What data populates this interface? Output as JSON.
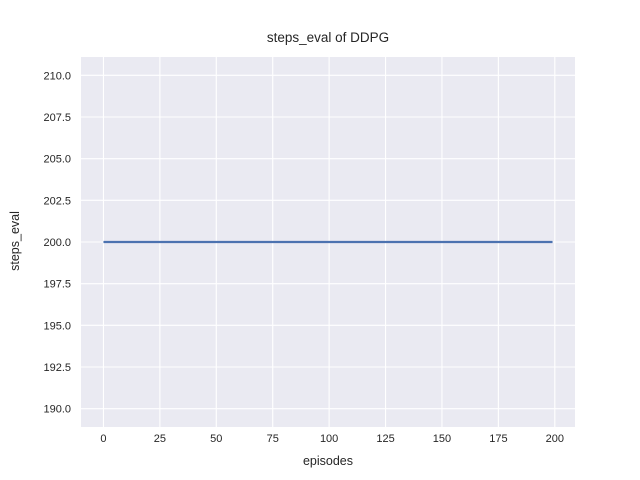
{
  "chart_data": {
    "type": "line",
    "title": "steps_eval of DDPG",
    "xlabel": "episodes",
    "ylabel": "steps_eval",
    "x_tick_values": [
      0,
      25,
      50,
      75,
      100,
      125,
      150,
      175,
      200
    ],
    "x_tick_labels": [
      "0",
      "25",
      "50",
      "75",
      "100",
      "125",
      "150",
      "175",
      "200"
    ],
    "y_tick_values": [
      190.0,
      192.5,
      195.0,
      197.5,
      200.0,
      202.5,
      205.0,
      207.5,
      210.0
    ],
    "y_tick_labels": [
      "190.0",
      "192.5",
      "195.0",
      "197.5",
      "200.0",
      "202.5",
      "205.0",
      "207.5",
      "210.0"
    ],
    "xlim": [
      -9.95,
      208.95
    ],
    "ylim": [
      188.9,
      211.1
    ],
    "grid": true,
    "legend": "none",
    "series": [
      {
        "name": "DDPG",
        "x": [
          0,
          199
        ],
        "y": [
          200,
          200
        ],
        "color": "#4c72b0",
        "description": "constant steps_eval value of 200 for episodes 0 through 199"
      }
    ],
    "style": {
      "figure_background": "#ffffff",
      "plot_background": "#eaeaf2",
      "grid_color": "#ffffff",
      "text_color": "#262626",
      "line_width": 2.2
    }
  }
}
